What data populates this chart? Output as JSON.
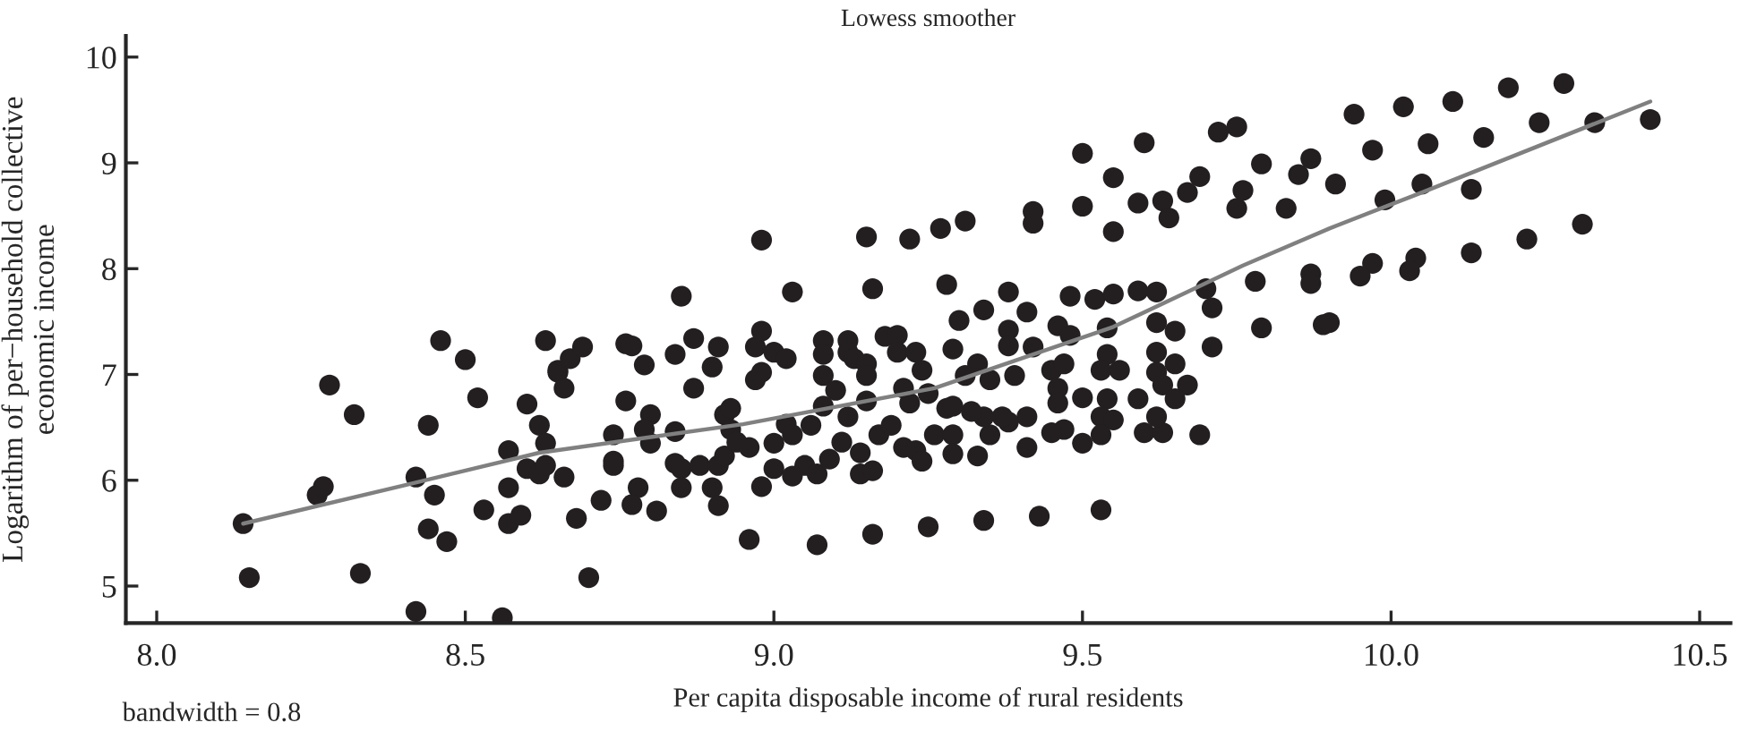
{
  "chart_data": {
    "type": "scatter",
    "title": "Lowess smoother",
    "xlabel": "Per capita disposable income of rural residents",
    "ylabel": "Logarithm of per−household collective\neconomic income",
    "annotations": [
      "bandwidth = 0.8"
    ],
    "xlim": [
      7.95,
      10.55
    ],
    "xticks": [
      {
        "value": 8,
        "label": "8.0"
      },
      {
        "value": 8.5,
        "label": "8.5"
      },
      {
        "value": 9,
        "label": "9.0"
      },
      {
        "value": 9.5,
        "label": "9.5"
      },
      {
        "value": 10,
        "label": "10.0"
      },
      {
        "value": 10.5,
        "label": "10.5"
      }
    ],
    "ylim": [
      4.65,
      10.2
    ],
    "yticks": [
      5,
      6,
      7,
      8,
      9,
      10
    ],
    "grid": false,
    "legend": false,
    "marker": "circle",
    "series": [
      {
        "color": "#231f20",
        "x": [
          8.14,
          8.15,
          8.26,
          8.27,
          8.28,
          8.32,
          8.33,
          8.42,
          8.42,
          8.44,
          8.45,
          8.44,
          8.47,
          8.46,
          8.5,
          8.52,
          8.53,
          8.56,
          8.57,
          8.57,
          8.57,
          8.59,
          8.6,
          8.62,
          8.6,
          8.62,
          8.63,
          8.63,
          8.63,
          8.65,
          8.66,
          8.68,
          8.7,
          8.72,
          8.65,
          8.67,
          8.69,
          8.66,
          8.74,
          8.74,
          8.74,
          8.76,
          8.76,
          8.77,
          8.79,
          8.8,
          8.79,
          8.8,
          8.78,
          8.77,
          8.81,
          8.84,
          8.85,
          8.84,
          8.84,
          8.85,
          8.85,
          8.87,
          8.87,
          8.88,
          8.9,
          8.9,
          8.91,
          8.91,
          8.91,
          8.92,
          8.92,
          8.93,
          8.93,
          8.94,
          8.96,
          8.96,
          8.97,
          8.98,
          8.97,
          8.98,
          8.98,
          8.98,
          9.0,
          9.0,
          9.0,
          9.02,
          9.02,
          9.03,
          9.03,
          9.03,
          9.05,
          9.06,
          9.07,
          9.07,
          9.08,
          9.08,
          9.08,
          9.08,
          9.09,
          9.1,
          9.11,
          9.12,
          9.12,
          9.12,
          9.13,
          9.14,
          9.15,
          9.15,
          9.15,
          9.15,
          9.14,
          9.16,
          9.16,
          9.16,
          9.17,
          9.18,
          9.19,
          9.2,
          9.2,
          9.21,
          9.21,
          9.22,
          9.22,
          9.23,
          9.23,
          9.24,
          9.24,
          9.25,
          9.25,
          9.26,
          9.27,
          9.28,
          9.28,
          9.29,
          9.31,
          9.5,
          9.6,
          9.72,
          9.75,
          9.42,
          9.42,
          9.5,
          9.55,
          9.55,
          9.59,
          9.63,
          9.64,
          9.67,
          9.69,
          9.75,
          9.76,
          9.79,
          9.83,
          9.85,
          9.87,
          9.91,
          9.3,
          9.34,
          9.38,
          9.41,
          9.38,
          9.38,
          9.42,
          9.33,
          9.31,
          9.35,
          9.39,
          9.45,
          9.47,
          9.46,
          9.48,
          9.48,
          9.52,
          9.55,
          9.54,
          9.59,
          9.62,
          9.62,
          9.65,
          9.7,
          9.71,
          9.71,
          9.78,
          9.79,
          9.87,
          9.87,
          9.89,
          9.54,
          9.56,
          9.53,
          9.46,
          9.5,
          9.46,
          9.62,
          9.65,
          9.62,
          9.63,
          9.67,
          9.65,
          9.59,
          9.54,
          9.53,
          9.55,
          9.53,
          9.5,
          9.47,
          9.45,
          9.41,
          9.41,
          9.38,
          9.35,
          9.37,
          9.34,
          9.32,
          9.29,
          9.29,
          9.29,
          9.33,
          9.6,
          9.63,
          9.62,
          9.69,
          9.34,
          9.43,
          9.53,
          9.94,
          10.02,
          10.1,
          10.19,
          10.28,
          9.97,
          10.06,
          10.15,
          10.24,
          10.33,
          10.42,
          9.99,
          10.05,
          10.13,
          9.97,
          9.95,
          10.04,
          10.03,
          10.13,
          10.22,
          10.31,
          9.9
        ],
        "values": [
          5.59,
          5.08,
          5.86,
          5.94,
          6.9,
          6.62,
          5.12,
          6.03,
          4.76,
          6.52,
          5.86,
          5.54,
          5.42,
          7.32,
          7.14,
          6.78,
          5.72,
          4.7,
          6.28,
          5.93,
          5.59,
          5.67,
          6.72,
          6.52,
          6.11,
          6.06,
          6.14,
          6.35,
          7.32,
          7.02,
          6.87,
          5.64,
          5.08,
          5.81,
          7.04,
          7.15,
          7.26,
          6.03,
          6.43,
          6.18,
          6.14,
          6.75,
          7.29,
          7.27,
          7.09,
          6.62,
          6.48,
          6.35,
          5.93,
          5.77,
          5.71,
          7.19,
          7.74,
          6.46,
          6.16,
          6.11,
          5.93,
          6.87,
          7.34,
          6.14,
          5.93,
          7.07,
          7.26,
          5.76,
          6.14,
          6.23,
          6.62,
          6.68,
          6.48,
          6.36,
          6.31,
          5.44,
          7.26,
          8.27,
          6.95,
          7.02,
          7.41,
          5.94,
          7.21,
          6.35,
          6.11,
          7.15,
          6.53,
          7.78,
          6.43,
          6.04,
          6.14,
          6.52,
          6.06,
          5.39,
          6.99,
          7.32,
          7.19,
          6.7,
          6.2,
          6.85,
          6.36,
          7.32,
          7.21,
          6.6,
          7.15,
          6.26,
          8.3,
          7.1,
          6.99,
          6.75,
          6.06,
          7.81,
          5.49,
          6.09,
          6.43,
          7.36,
          6.52,
          7.37,
          7.21,
          6.31,
          6.87,
          8.28,
          6.73,
          7.21,
          6.28,
          7.04,
          6.18,
          5.56,
          6.82,
          6.43,
          8.38,
          7.85,
          6.68,
          7.24,
          8.45,
          9.09,
          9.19,
          9.29,
          9.34,
          8.54,
          8.43,
          8.59,
          8.86,
          8.35,
          8.62,
          8.64,
          8.48,
          8.72,
          8.87,
          8.57,
          8.74,
          8.99,
          8.57,
          8.89,
          9.04,
          8.8,
          7.51,
          7.61,
          7.78,
          7.59,
          7.42,
          7.27,
          7.26,
          7.1,
          6.99,
          6.95,
          6.99,
          7.04,
          7.1,
          7.46,
          7.74,
          7.37,
          7.71,
          7.76,
          7.44,
          7.79,
          7.78,
          7.49,
          7.41,
          7.81,
          7.63,
          7.26,
          7.88,
          7.44,
          7.95,
          7.86,
          7.47,
          7.19,
          7.04,
          7.04,
          6.87,
          6.78,
          6.73,
          7.21,
          7.1,
          7.02,
          6.9,
          6.9,
          6.77,
          6.77,
          6.77,
          6.6,
          6.57,
          6.43,
          6.35,
          6.48,
          6.45,
          6.31,
          6.6,
          6.55,
          6.43,
          6.6,
          6.6,
          6.65,
          6.7,
          6.43,
          6.25,
          6.23,
          6.45,
          6.45,
          6.6,
          6.43,
          5.62,
          5.66,
          5.72,
          9.46,
          9.53,
          9.58,
          9.71,
          9.75,
          9.12,
          9.18,
          9.24,
          9.38,
          9.38,
          9.41,
          8.65,
          8.8,
          8.75,
          8.05,
          7.93,
          8.1,
          7.98,
          8.15,
          8.28,
          8.42,
          7.49
        ]
      },
      {
        "type": "line",
        "color": "#808080",
        "marker": "none",
        "line_style": "solid",
        "x": [
          8.14,
          8.4,
          8.62,
          8.95,
          9.26,
          9.4,
          9.55,
          9.67,
          9.76,
          9.9,
          10.05,
          10.42
        ],
        "values": [
          5.59,
          5.95,
          6.26,
          6.53,
          6.87,
          7.15,
          7.45,
          7.78,
          8.03,
          8.38,
          8.72,
          9.58
        ]
      }
    ]
  }
}
